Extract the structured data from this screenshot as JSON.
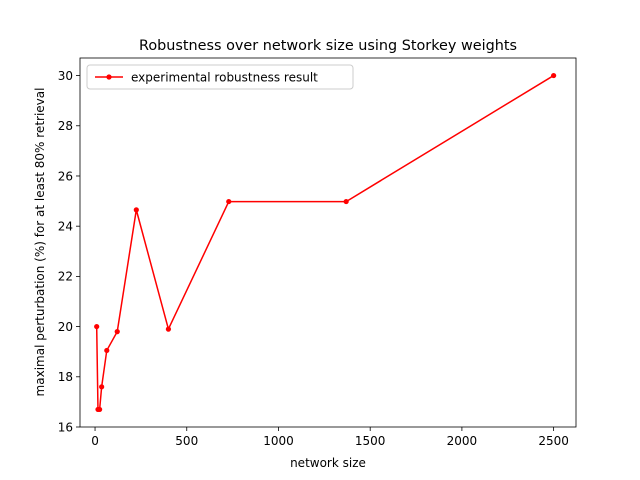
{
  "chart_data": {
    "type": "line",
    "title": "Robustness over network size using Storkey weights",
    "xlabel": "network size",
    "ylabel": "maximal perturbation (%) for at least 80% retrieval",
    "xlim": [
      -82,
      2622
    ],
    "ylim": [
      16,
      30.7
    ],
    "xticks": [
      0,
      500,
      1000,
      1500,
      2000,
      2500
    ],
    "yticks": [
      16,
      18,
      20,
      22,
      24,
      26,
      28,
      30
    ],
    "grid": false,
    "legend_position": "top-left",
    "series": [
      {
        "name": "experimental robustness result",
        "color": "#ff0000",
        "marker": "circle",
        "x": [
          9,
          16,
          25,
          36,
          64,
          121,
          225,
          400,
          729,
          1369,
          2500
        ],
        "y": [
          20.0,
          16.7,
          16.7,
          17.6,
          19.05,
          19.8,
          24.65,
          19.9,
          24.98,
          24.98,
          30.0
        ]
      }
    ]
  }
}
